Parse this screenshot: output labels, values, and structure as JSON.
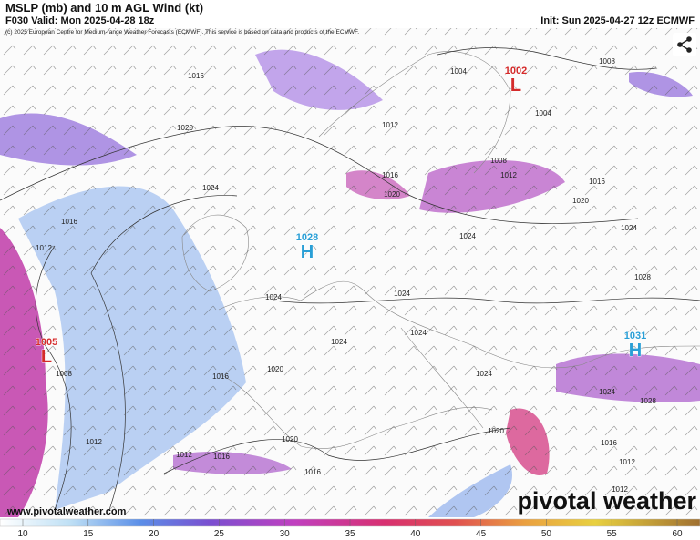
{
  "header": {
    "title": "MSLP (mb) and 10 m AGL Wind (kt)",
    "valid": "F030 Valid: Mon 2025-04-28 18z",
    "init": "Init: Sun 2025-04-27 12z ECMWF",
    "credit": "(c) 2025 European Centre for Medium-range Weather Forecasts (ECMWF). This service is based on data and products of the ECMWF."
  },
  "centers": [
    {
      "letter": "L",
      "value": "1002"
    },
    {
      "letter": "H",
      "value": "1028"
    },
    {
      "letter": "L",
      "value": "1005"
    },
    {
      "letter": "H",
      "value": "1031"
    }
  ],
  "isobar_labels": [
    "1016",
    "1020",
    "1024",
    "1016",
    "1012",
    "1020",
    "1016",
    "1012",
    "1004",
    "1008",
    "1004",
    "1008",
    "1012",
    "1020",
    "1016",
    "1024",
    "1024",
    "1024",
    "1024",
    "1028",
    "1024",
    "1024",
    "1024",
    "1024",
    "1028",
    "1020",
    "1016",
    "1008",
    "1012",
    "1012",
    "1016",
    "1020",
    "1016",
    "1020",
    "1016",
    "1012",
    "1012"
  ],
  "colorbar": {
    "ticks": [
      10,
      15,
      20,
      25,
      30,
      35,
      40,
      45,
      50,
      55,
      60
    ]
  },
  "footer": {
    "url": "www.pivotalweather.com",
    "brand": "pivotal weather"
  }
}
